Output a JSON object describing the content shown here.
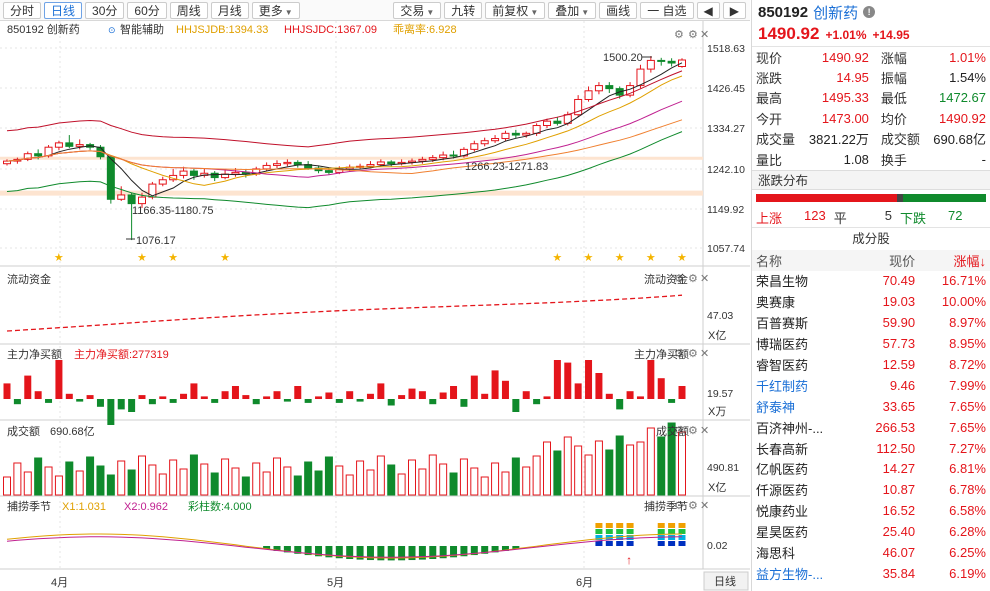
{
  "toolbar": {
    "tabs": [
      "分时",
      "日线",
      "30分",
      "60分",
      "周线",
      "月线",
      "更多"
    ],
    "active_tab": "日线",
    "tools": [
      "交易",
      "九转",
      "前复权",
      "叠加",
      "画线"
    ],
    "watchlist": "一 自选",
    "prev": "◀",
    "next": "▶"
  },
  "chart": {
    "code_name": "850192 创新药",
    "assist": "智能辅助",
    "ind1": "HHJSJDB:1394.33",
    "ind2": "HHJSJDC:1367.09",
    "ind3": "乖离率:6.928",
    "y_labels": [
      "1518.63",
      "1426.45",
      "1334.27",
      "1242.10",
      "1149.92",
      "1057.74"
    ],
    "annot_high": "1500.20",
    "annot_low": "1076.17",
    "annot_range1": "1166.35-1180.75",
    "annot_range2": "1266.23-1271.83",
    "dates": [
      "4月",
      "5月",
      "6月"
    ],
    "daily_btn": "日线",
    "colors": {
      "up": "#e4151b",
      "down": "#0f8a2c",
      "star": "#f4b400"
    }
  },
  "panel_fund": {
    "title": "流动资金",
    "label_right": "流动资金",
    "y_value": "47.03",
    "unit": "X亿"
  },
  "panel_main": {
    "title": "主力净买额",
    "value": "主力净买额:277319",
    "label_right": "主力净买额",
    "y_value": "19.57",
    "unit": "X万"
  },
  "panel_vol": {
    "title": "成交额",
    "value": "690.68亿",
    "label_right": "成交额",
    "y_value": "490.81",
    "unit": "X亿"
  },
  "panel_season": {
    "title": "捕捞季节",
    "x1": "X1:1.031",
    "x2": "X2:0.962",
    "bars": "彩柱数:4.000",
    "label_right": "捕捞季节",
    "y_value": "0.02"
  },
  "quote": {
    "code": "850192",
    "name": "创新药",
    "price": "1490.92",
    "change_pct": "+1.01%",
    "change": "+14.95",
    "rows": [
      [
        "现价",
        "1490.92",
        "red",
        "涨幅",
        "1.01%",
        "red"
      ],
      [
        "涨跌",
        "14.95",
        "red",
        "振幅",
        "1.54%",
        "blk"
      ],
      [
        "最高",
        "1495.33",
        "red",
        "最低",
        "1472.67",
        "grn"
      ],
      [
        "今开",
        "1473.00",
        "red",
        "均价",
        "1490.92",
        "red"
      ],
      [
        "成交量",
        "3821.22万",
        "blk",
        "成交额",
        "690.68亿",
        "blk"
      ],
      [
        "量比",
        "1.08",
        "blk",
        "换手",
        "-",
        "blk"
      ]
    ]
  },
  "distribution": {
    "title": "涨跌分布",
    "up_label": "上涨",
    "up": "123",
    "flat_label": "平",
    "flat": "5",
    "down_label": "下跌",
    "down": "72"
  },
  "constituents": {
    "title": "成分股",
    "headers": [
      "名称",
      "现价",
      "涨幅↓"
    ],
    "rows": [
      [
        "荣昌生物",
        "70.49",
        "16.71%",
        "blk"
      ],
      [
        "奥赛康",
        "19.03",
        "10.00%",
        "blk"
      ],
      [
        "百普赛斯",
        "59.90",
        "8.97%",
        "blk"
      ],
      [
        "博瑞医药",
        "57.73",
        "8.95%",
        "blk"
      ],
      [
        "睿智医药",
        "12.59",
        "8.72%",
        "blk"
      ],
      [
        "千红制药",
        "9.46",
        "7.99%",
        "blu"
      ],
      [
        "舒泰神",
        "33.65",
        "7.65%",
        "blu"
      ],
      [
        "百济神州-...",
        "266.53",
        "7.65%",
        "blk"
      ],
      [
        "长春高新",
        "112.50",
        "7.27%",
        "blk"
      ],
      [
        "亿帆医药",
        "14.27",
        "6.81%",
        "blk"
      ],
      [
        "仟源医药",
        "10.87",
        "6.78%",
        "blk"
      ],
      [
        "悦康药业",
        "16.52",
        "6.58%",
        "blk"
      ],
      [
        "星昊医药",
        "25.40",
        "6.28%",
        "blk"
      ],
      [
        "海思科",
        "46.07",
        "6.25%",
        "blk"
      ],
      [
        "益方生物-...",
        "35.84",
        "6.19%",
        "blu"
      ]
    ]
  }
}
